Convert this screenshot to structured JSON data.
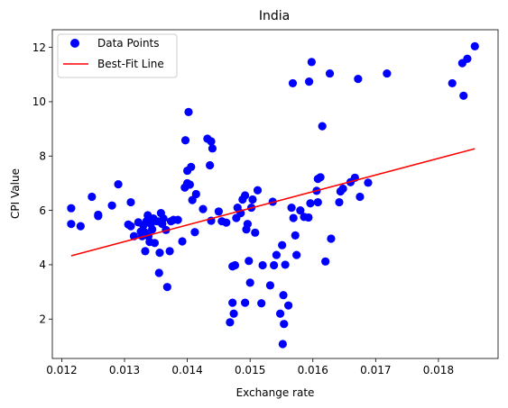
{
  "chart_data": {
    "type": "scatter",
    "title": "India",
    "xlabel": "Exchange rate",
    "ylabel": "CPI Value",
    "xlim": [
      0.01185,
      0.01895
    ],
    "ylim": [
      0.55,
      12.65
    ],
    "xticks": [
      0.012,
      0.013,
      0.014,
      0.015,
      0.016,
      0.017,
      0.018
    ],
    "xtick_labels": [
      "0.012",
      "0.013",
      "0.014",
      "0.015",
      "0.016",
      "0.017",
      "0.018"
    ],
    "yticks": [
      2,
      4,
      6,
      8,
      10,
      12
    ],
    "ytick_labels": [
      "2",
      "4",
      "6",
      "8",
      "10",
      "12"
    ],
    "grid": false,
    "legend_position": "top-left",
    "series": [
      {
        "name": "Data Points",
        "color": "#0000ff",
        "marker": "circle",
        "points": [
          [
            0.01215,
            6.08
          ],
          [
            0.01215,
            5.5
          ],
          [
            0.0123,
            5.42
          ],
          [
            0.01248,
            6.5
          ],
          [
            0.01258,
            5.84
          ],
          [
            0.01258,
            5.79
          ],
          [
            0.0128,
            6.18
          ],
          [
            0.0129,
            6.96
          ],
          [
            0.01306,
            5.48
          ],
          [
            0.0131,
            5.42
          ],
          [
            0.0131,
            6.3
          ],
          [
            0.01315,
            5.05
          ],
          [
            0.01322,
            5.56
          ],
          [
            0.01326,
            5.22
          ],
          [
            0.01328,
            5.05
          ],
          [
            0.0133,
            5.45
          ],
          [
            0.01332,
            5.2
          ],
          [
            0.01333,
            4.5
          ],
          [
            0.01335,
            5.6
          ],
          [
            0.01337,
            5.82
          ],
          [
            0.01338,
            5.05
          ],
          [
            0.0134,
            4.84
          ],
          [
            0.01342,
            5.5
          ],
          [
            0.01344,
            5.3
          ],
          [
            0.01346,
            5.7
          ],
          [
            0.01348,
            4.8
          ],
          [
            0.01352,
            5.6
          ],
          [
            0.01355,
            3.7
          ],
          [
            0.01356,
            4.44
          ],
          [
            0.01358,
            5.9
          ],
          [
            0.0136,
            5.5
          ],
          [
            0.01362,
            5.7
          ],
          [
            0.01366,
            5.28
          ],
          [
            0.01368,
            3.18
          ],
          [
            0.01372,
            4.5
          ],
          [
            0.01374,
            5.6
          ],
          [
            0.01378,
            5.65
          ],
          [
            0.01385,
            5.65
          ],
          [
            0.01392,
            4.86
          ],
          [
            0.01396,
            6.84
          ],
          [
            0.01397,
            8.58
          ],
          [
            0.014,
            7.0
          ],
          [
            0.014,
            7.46
          ],
          [
            0.01402,
            9.62
          ],
          [
            0.01404,
            6.95
          ],
          [
            0.01406,
            7.6
          ],
          [
            0.01408,
            6.38
          ],
          [
            0.01412,
            5.2
          ],
          [
            0.01414,
            6.6
          ],
          [
            0.01425,
            6.05
          ],
          [
            0.01432,
            8.64
          ],
          [
            0.01436,
            7.66
          ],
          [
            0.01438,
            8.54
          ],
          [
            0.01438,
            5.62
          ],
          [
            0.0144,
            8.28
          ],
          [
            0.0145,
            5.96
          ],
          [
            0.01455,
            5.6
          ],
          [
            0.01462,
            5.55
          ],
          [
            0.01468,
            1.88
          ],
          [
            0.01472,
            3.94
          ],
          [
            0.01472,
            2.6
          ],
          [
            0.01474,
            2.2
          ],
          [
            0.01476,
            3.98
          ],
          [
            0.01478,
            5.72
          ],
          [
            0.0148,
            6.1
          ],
          [
            0.01485,
            5.9
          ],
          [
            0.01488,
            6.4
          ],
          [
            0.01492,
            6.55
          ],
          [
            0.01492,
            2.6
          ],
          [
            0.01494,
            5.3
          ],
          [
            0.01496,
            5.5
          ],
          [
            0.01498,
            4.14
          ],
          [
            0.015,
            3.34
          ],
          [
            0.01502,
            6.1
          ],
          [
            0.01504,
            6.4
          ],
          [
            0.01508,
            5.18
          ],
          [
            0.01512,
            6.74
          ],
          [
            0.01518,
            2.58
          ],
          [
            0.0152,
            3.98
          ],
          [
            0.01532,
            3.24
          ],
          [
            0.01536,
            6.32
          ],
          [
            0.01538,
            3.98
          ],
          [
            0.01542,
            4.36
          ],
          [
            0.01548,
            2.2
          ],
          [
            0.01551,
            4.72
          ],
          [
            0.01552,
            1.08
          ],
          [
            0.01553,
            2.88
          ],
          [
            0.01554,
            1.82
          ],
          [
            0.01556,
            4.0
          ],
          [
            0.01561,
            2.5
          ],
          [
            0.01566,
            6.1
          ],
          [
            0.01568,
            10.68
          ],
          [
            0.01569,
            5.72
          ],
          [
            0.01572,
            5.08
          ],
          [
            0.01574,
            4.36
          ],
          [
            0.0158,
            6.0
          ],
          [
            0.01586,
            5.76
          ],
          [
            0.01593,
            5.74
          ],
          [
            0.01594,
            10.74
          ],
          [
            0.01596,
            6.26
          ],
          [
            0.01598,
            11.46
          ],
          [
            0.01606,
            6.72
          ],
          [
            0.01608,
            6.3
          ],
          [
            0.01608,
            7.16
          ],
          [
            0.01612,
            7.22
          ],
          [
            0.01615,
            9.1
          ],
          [
            0.0162,
            4.12
          ],
          [
            0.01627,
            11.04
          ],
          [
            0.01629,
            4.96
          ],
          [
            0.01642,
            6.3
          ],
          [
            0.01644,
            6.7
          ],
          [
            0.01648,
            6.8
          ],
          [
            0.0166,
            7.04
          ],
          [
            0.01667,
            7.2
          ],
          [
            0.01672,
            10.84
          ],
          [
            0.01675,
            6.5
          ],
          [
            0.01688,
            7.02
          ],
          [
            0.01718,
            11.04
          ],
          [
            0.01822,
            10.68
          ],
          [
            0.01838,
            11.42
          ],
          [
            0.0184,
            10.22
          ],
          [
            0.01846,
            11.58
          ],
          [
            0.01858,
            12.04
          ]
        ]
      },
      {
        "name": "Best-Fit Line",
        "color": "#ff0000",
        "type": "line",
        "x": [
          0.01215,
          0.01858
        ],
        "y": [
          4.33,
          8.27
        ]
      }
    ]
  }
}
